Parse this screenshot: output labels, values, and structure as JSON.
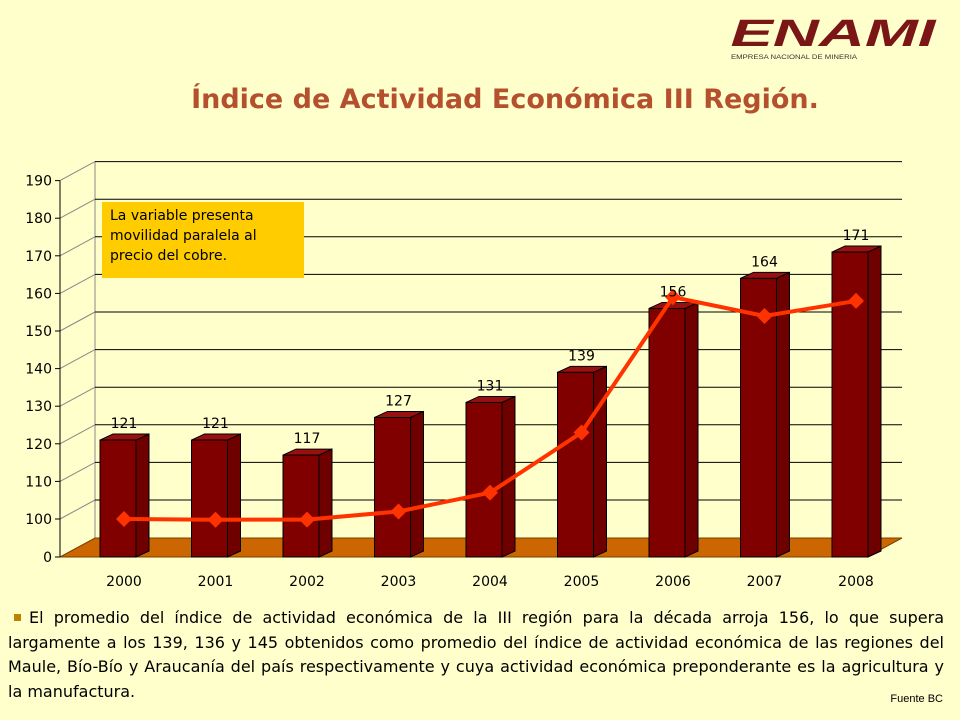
{
  "logo": {
    "brand": "ENAMI",
    "tagline": "EMPRESA NACIONAL DE MINERIA"
  },
  "title": "Índice de Actividad Económica III Región.",
  "note": "La variable presenta movilidad paralela al precio del cobre.",
  "description": "El promedio del índice de actividad económica de la III región para la década arroja 156, lo que supera largamente a los 139, 136 y 145 obtenidos como promedio del índice de actividad económica de las regiones del Maule, Bío-Bío y Araucanía del país respectivamente y cuya actividad económica preponderante es la agricultura y la manufactura.",
  "source": "Fuente BC",
  "colors": {
    "background": "#ffffcc",
    "bar": "#800000",
    "line": "#ff3300",
    "floor": "#cc6600",
    "title": "#b5502f",
    "note_bg": "#ffcc00"
  },
  "chart_data": {
    "type": "bar",
    "categories": [
      "2000",
      "2001",
      "2002",
      "2003",
      "2004",
      "2005",
      "2006",
      "2007",
      "2008"
    ],
    "series": [
      {
        "type": "bar",
        "values": [
          121,
          121,
          117,
          127,
          131,
          139,
          156,
          164,
          171
        ],
        "data_labels": [
          "121",
          "121",
          "117",
          "127",
          "131",
          "139",
          "156",
          "164",
          "171"
        ]
      },
      {
        "type": "line",
        "values": [
          100,
          98,
          98.5,
          102,
          107,
          123,
          159,
          154,
          158
        ]
      }
    ],
    "y_ticks": [
      "0",
      "100",
      "110",
      "120",
      "130",
      "140",
      "150",
      "160",
      "170",
      "180",
      "190"
    ],
    "ylim": [
      0,
      190
    ],
    "axis_break": "0-100",
    "grid": true,
    "three_d": true
  }
}
